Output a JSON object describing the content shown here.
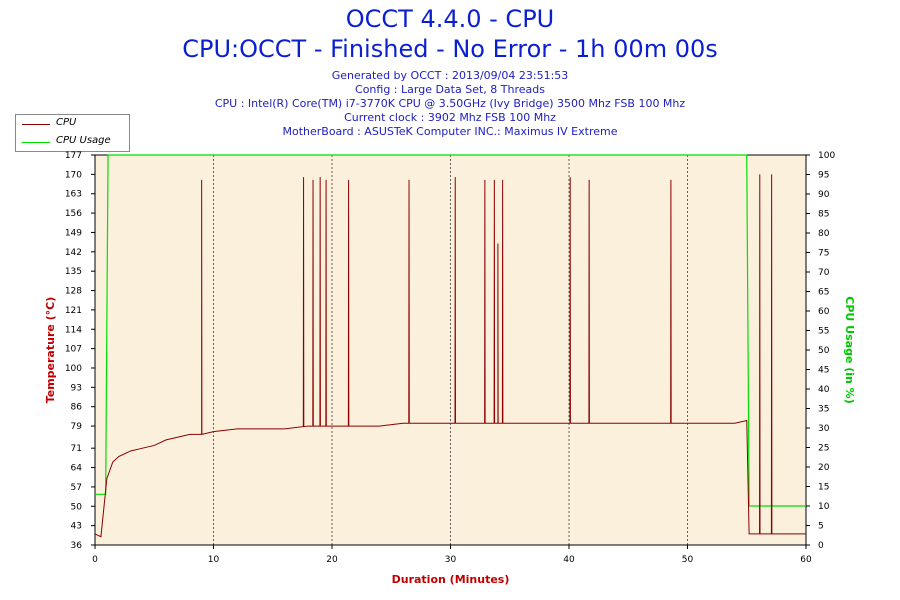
{
  "header": {
    "title": "OCCT 4.4.0 - CPU",
    "subtitle": "CPU:OCCT - Finished - No Error - 1h 00m 00s",
    "info_lines": [
      "Generated by OCCT : 2013/09/04 23:51:53",
      "Config : Large Data Set, 8 Threads",
      "CPU : Intel(R) Core(TM) i7-3770K CPU @ 3.50GHz (Ivy Bridge) 3500 Mhz FSB 100 Mhz",
      "Current clock : 3902 Mhz FSB 100 Mhz",
      "MotherBoard : ASUSTeK Computer INC.: Maximus IV Extreme"
    ]
  },
  "legend": {
    "items": [
      {
        "label": "CPU",
        "color": "#8b0000"
      },
      {
        "label": "CPU Usage",
        "color": "#00e000"
      }
    ]
  },
  "colors": {
    "plot_background": "#faf0dc",
    "temperature": "#8b0000",
    "usage": "#00e000",
    "title": "#0a1fd0",
    "axis_label_x": "#c00000",
    "axis_label_left": "#c00000",
    "axis_label_right": "#00c800"
  },
  "chart_data": {
    "type": "line",
    "xlabel": "Duration (Minutes)",
    "ylabel_left": "Temperature (°C)",
    "ylabel_right": "CPU Usage (in %)",
    "xlim": [
      0,
      60
    ],
    "x_ticks": [
      0,
      10,
      20,
      30,
      40,
      50,
      60
    ],
    "ylim_left": [
      36,
      177
    ],
    "y_ticks_left": [
      36,
      43,
      50,
      57,
      64,
      71,
      79,
      86,
      93,
      100,
      107,
      114,
      121,
      128,
      135,
      142,
      149,
      156,
      163,
      170,
      177
    ],
    "ylim_right": [
      0,
      100
    ],
    "y_ticks_right": [
      0,
      5,
      10,
      15,
      20,
      25,
      30,
      35,
      40,
      45,
      50,
      55,
      60,
      65,
      70,
      75,
      80,
      85,
      90,
      95,
      100
    ],
    "grid": "vertical dashed",
    "series": [
      {
        "name": "CPU",
        "axis": "left",
        "x": [
          0,
          0.5,
          1,
          1.5,
          2,
          3,
          4,
          5,
          6,
          7,
          8,
          9,
          10,
          12,
          14,
          16,
          18,
          20,
          22,
          24,
          26,
          28,
          30,
          32,
          34,
          36,
          38,
          40,
          42,
          44,
          46,
          48,
          50,
          52,
          54,
          55,
          55.2,
          60
        ],
        "y": [
          40,
          39,
          60,
          66,
          68,
          70,
          71,
          72,
          74,
          75,
          76,
          76,
          77,
          78,
          78,
          78,
          79,
          79,
          79,
          79,
          80,
          80,
          80,
          80,
          80,
          80,
          80,
          80,
          80,
          80,
          80,
          80,
          80,
          80,
          80,
          81,
          40,
          40
        ],
        "spikes_x": [
          9,
          17.6,
          18.4,
          19,
          19.5,
          21.4,
          26.5,
          30.4,
          32.9,
          33.7,
          34,
          34.4,
          40.1,
          41.7,
          48.6,
          56.1,
          57.1
        ],
        "spikes_y": [
          168,
          169,
          168,
          169,
          168,
          168,
          168,
          169,
          168,
          168,
          145,
          168,
          169,
          168,
          168,
          170,
          170
        ]
      },
      {
        "name": "CPU Usage",
        "axis": "right",
        "x": [
          0,
          0.9,
          1.1,
          55,
          55.2,
          60
        ],
        "y": [
          13,
          13,
          100,
          100,
          10,
          10
        ]
      }
    ]
  }
}
